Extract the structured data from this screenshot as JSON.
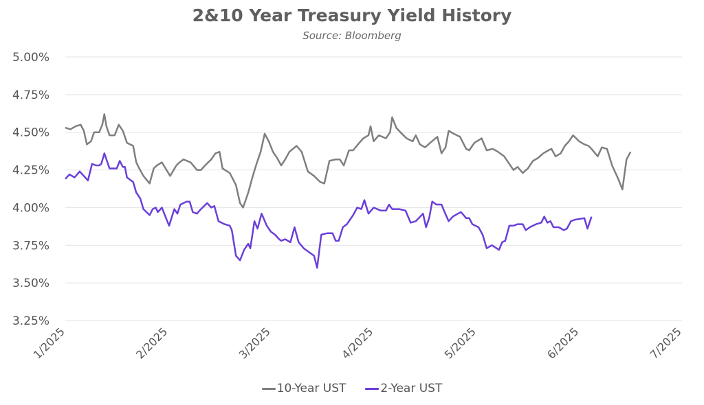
{
  "chart_data": {
    "type": "line",
    "title": "2&10 Year Treasury Yield History",
    "subtitle": "Source: Bloomberg",
    "xlabel": "",
    "ylabel": "",
    "xlim": [
      0,
      6
    ],
    "ylim": [
      3.25,
      5.0
    ],
    "grid": true,
    "legend_position": "bottom",
    "y_ticks": [
      "3.25%",
      "3.50%",
      "3.75%",
      "4.00%",
      "4.25%",
      "4.50%",
      "4.75%",
      "5.00%"
    ],
    "y_tick_values": [
      3.25,
      3.5,
      3.75,
      4.0,
      4.25,
      4.5,
      4.75,
      5.0
    ],
    "x_ticks": [
      "1/2025",
      "2/2025",
      "3/2025",
      "4/2025",
      "5/2025",
      "6/2025",
      "7/2025"
    ],
    "x_tick_values": [
      0,
      1,
      2,
      3,
      4,
      5,
      6
    ],
    "series": [
      {
        "name": "10-Year UST",
        "color": "#7f7f7f",
        "points": [
          [
            0.0,
            4.53
          ],
          [
            0.05,
            4.52
          ],
          [
            0.1,
            4.54
          ],
          [
            0.15,
            4.55
          ],
          [
            0.18,
            4.51
          ],
          [
            0.21,
            4.42
          ],
          [
            0.25,
            4.44
          ],
          [
            0.28,
            4.5
          ],
          [
            0.33,
            4.5
          ],
          [
            0.36,
            4.55
          ],
          [
            0.38,
            4.62
          ],
          [
            0.4,
            4.54
          ],
          [
            0.43,
            4.48
          ],
          [
            0.48,
            4.48
          ],
          [
            0.52,
            4.55
          ],
          [
            0.56,
            4.51
          ],
          [
            0.6,
            4.43
          ],
          [
            0.66,
            4.41
          ],
          [
            0.69,
            4.3
          ],
          [
            0.72,
            4.26
          ],
          [
            0.76,
            4.21
          ],
          [
            0.82,
            4.16
          ],
          [
            0.86,
            4.26
          ],
          [
            0.89,
            4.28
          ],
          [
            0.94,
            4.3
          ],
          [
            1.02,
            4.21
          ],
          [
            1.08,
            4.28
          ],
          [
            1.11,
            4.3
          ],
          [
            1.15,
            4.32
          ],
          [
            1.22,
            4.3
          ],
          [
            1.28,
            4.25
          ],
          [
            1.32,
            4.25
          ],
          [
            1.36,
            4.28
          ],
          [
            1.42,
            4.32
          ],
          [
            1.46,
            4.36
          ],
          [
            1.5,
            4.37
          ],
          [
            1.53,
            4.26
          ],
          [
            1.6,
            4.23
          ],
          [
            1.66,
            4.15
          ],
          [
            1.7,
            4.03
          ],
          [
            1.73,
            4.0
          ],
          [
            1.78,
            4.1
          ],
          [
            1.82,
            4.2
          ],
          [
            1.86,
            4.29
          ],
          [
            1.9,
            4.37
          ],
          [
            1.94,
            4.49
          ],
          [
            1.98,
            4.44
          ],
          [
            2.02,
            4.37
          ],
          [
            2.06,
            4.33
          ],
          [
            2.1,
            4.28
          ],
          [
            2.14,
            4.32
          ],
          [
            2.18,
            4.37
          ],
          [
            2.25,
            4.41
          ],
          [
            2.3,
            4.37
          ],
          [
            2.36,
            4.24
          ],
          [
            2.42,
            4.21
          ],
          [
            2.48,
            4.17
          ],
          [
            2.52,
            4.16
          ],
          [
            2.57,
            4.31
          ],
          [
            2.63,
            4.32
          ],
          [
            2.67,
            4.32
          ],
          [
            2.71,
            4.28
          ],
          [
            2.76,
            4.38
          ],
          [
            2.8,
            4.38
          ],
          [
            2.86,
            4.43
          ],
          [
            2.9,
            4.46
          ],
          [
            2.95,
            4.48
          ],
          [
            2.97,
            4.54
          ],
          [
            3.0,
            4.44
          ],
          [
            3.05,
            4.48
          ],
          [
            3.12,
            4.46
          ],
          [
            3.16,
            4.5
          ],
          [
            3.18,
            4.6
          ],
          [
            3.22,
            4.53
          ],
          [
            3.26,
            4.5
          ],
          [
            3.32,
            4.46
          ],
          [
            3.38,
            4.44
          ],
          [
            3.41,
            4.48
          ],
          [
            3.45,
            4.42
          ],
          [
            3.5,
            4.4
          ],
          [
            3.55,
            4.43
          ],
          [
            3.62,
            4.47
          ],
          [
            3.66,
            4.36
          ],
          [
            3.7,
            4.4
          ],
          [
            3.73,
            4.51
          ],
          [
            3.78,
            4.49
          ],
          [
            3.84,
            4.47
          ],
          [
            3.9,
            4.39
          ],
          [
            3.93,
            4.38
          ],
          [
            3.98,
            4.43
          ],
          [
            4.05,
            4.46
          ],
          [
            4.1,
            4.38
          ],
          [
            4.16,
            4.39
          ],
          [
            4.21,
            4.37
          ],
          [
            4.27,
            4.34
          ],
          [
            4.31,
            4.3
          ],
          [
            4.36,
            4.25
          ],
          [
            4.4,
            4.27
          ],
          [
            4.45,
            4.23
          ],
          [
            4.5,
            4.26
          ],
          [
            4.55,
            4.31
          ],
          [
            4.6,
            4.33
          ],
          [
            4.65,
            4.36
          ],
          [
            4.7,
            4.38
          ],
          [
            4.73,
            4.39
          ],
          [
            4.77,
            4.34
          ],
          [
            4.82,
            4.36
          ],
          [
            4.86,
            4.41
          ],
          [
            4.9,
            4.44
          ],
          [
            4.94,
            4.48
          ],
          [
            4.97,
            4.46
          ],
          [
            5.0,
            4.44
          ],
          [
            5.05,
            4.42
          ],
          [
            5.09,
            4.41
          ],
          [
            5.12,
            4.39
          ],
          [
            5.18,
            4.34
          ],
          [
            5.22,
            4.4
          ],
          [
            5.27,
            4.39
          ],
          [
            5.32,
            4.28
          ],
          [
            5.38,
            4.19
          ],
          [
            5.42,
            4.12
          ],
          [
            5.46,
            4.32
          ],
          [
            5.5,
            4.37
          ]
        ]
      },
      {
        "name": "2-Year UST",
        "color": "#6a3fd8",
        "points": [
          [
            0.0,
            4.19
          ],
          [
            0.04,
            4.22
          ],
          [
            0.09,
            4.2
          ],
          [
            0.14,
            4.24
          ],
          [
            0.18,
            4.21
          ],
          [
            0.22,
            4.18
          ],
          [
            0.26,
            4.29
          ],
          [
            0.3,
            4.28
          ],
          [
            0.33,
            4.28
          ],
          [
            0.35,
            4.29
          ],
          [
            0.38,
            4.36
          ],
          [
            0.43,
            4.26
          ],
          [
            0.48,
            4.26
          ],
          [
            0.5,
            4.26
          ],
          [
            0.53,
            4.31
          ],
          [
            0.56,
            4.27
          ],
          [
            0.58,
            4.27
          ],
          [
            0.6,
            4.2
          ],
          [
            0.66,
            4.17
          ],
          [
            0.69,
            4.1
          ],
          [
            0.73,
            4.06
          ],
          [
            0.76,
            3.99
          ],
          [
            0.82,
            3.95
          ],
          [
            0.85,
            3.99
          ],
          [
            0.88,
            4.0
          ],
          [
            0.9,
            3.97
          ],
          [
            0.94,
            4.0
          ],
          [
            0.98,
            3.93
          ],
          [
            1.01,
            3.88
          ],
          [
            1.06,
            3.99
          ],
          [
            1.09,
            3.96
          ],
          [
            1.12,
            4.02
          ],
          [
            1.18,
            4.04
          ],
          [
            1.21,
            4.04
          ],
          [
            1.24,
            3.97
          ],
          [
            1.28,
            3.96
          ],
          [
            1.32,
            3.99
          ],
          [
            1.38,
            4.03
          ],
          [
            1.42,
            4.0
          ],
          [
            1.45,
            4.01
          ],
          [
            1.49,
            3.91
          ],
          [
            1.55,
            3.89
          ],
          [
            1.6,
            3.88
          ],
          [
            1.62,
            3.85
          ],
          [
            1.66,
            3.68
          ],
          [
            1.7,
            3.65
          ],
          [
            1.74,
            3.72
          ],
          [
            1.78,
            3.76
          ],
          [
            1.8,
            3.73
          ],
          [
            1.84,
            3.91
          ],
          [
            1.87,
            3.86
          ],
          [
            1.91,
            3.96
          ],
          [
            1.96,
            3.88
          ],
          [
            2.0,
            3.84
          ],
          [
            2.04,
            3.82
          ],
          [
            2.08,
            3.79
          ],
          [
            2.1,
            3.78
          ],
          [
            2.14,
            3.79
          ],
          [
            2.19,
            3.77
          ],
          [
            2.23,
            3.87
          ],
          [
            2.27,
            3.77
          ],
          [
            2.32,
            3.73
          ],
          [
            2.36,
            3.71
          ],
          [
            2.42,
            3.68
          ],
          [
            2.45,
            3.6
          ],
          [
            2.49,
            3.82
          ],
          [
            2.55,
            3.83
          ],
          [
            2.6,
            3.83
          ],
          [
            2.63,
            3.78
          ],
          [
            2.66,
            3.78
          ],
          [
            2.7,
            3.87
          ],
          [
            2.74,
            3.89
          ],
          [
            2.8,
            3.95
          ],
          [
            2.84,
            4.0
          ],
          [
            2.88,
            3.99
          ],
          [
            2.91,
            4.05
          ],
          [
            2.95,
            3.96
          ],
          [
            3.0,
            4.0
          ],
          [
            3.07,
            3.98
          ],
          [
            3.12,
            3.98
          ],
          [
            3.15,
            4.02
          ],
          [
            3.18,
            3.99
          ],
          [
            3.25,
            3.99
          ],
          [
            3.31,
            3.98
          ],
          [
            3.36,
            3.9
          ],
          [
            3.41,
            3.91
          ],
          [
            3.48,
            3.96
          ],
          [
            3.51,
            3.87
          ],
          [
            3.54,
            3.93
          ],
          [
            3.57,
            4.04
          ],
          [
            3.61,
            4.02
          ],
          [
            3.66,
            4.02
          ],
          [
            3.69,
            3.97
          ],
          [
            3.73,
            3.91
          ],
          [
            3.77,
            3.94
          ],
          [
            3.82,
            3.96
          ],
          [
            3.85,
            3.97
          ],
          [
            3.9,
            3.93
          ],
          [
            3.93,
            3.93
          ],
          [
            3.96,
            3.89
          ],
          [
            4.02,
            3.87
          ],
          [
            4.06,
            3.82
          ],
          [
            4.1,
            3.73
          ],
          [
            4.15,
            3.75
          ],
          [
            4.22,
            3.72
          ],
          [
            4.25,
            3.77
          ],
          [
            4.28,
            3.78
          ],
          [
            4.32,
            3.88
          ],
          [
            4.36,
            3.88
          ],
          [
            4.4,
            3.89
          ],
          [
            4.45,
            3.89
          ],
          [
            4.48,
            3.85
          ],
          [
            4.52,
            3.87
          ],
          [
            4.58,
            3.89
          ],
          [
            4.63,
            3.9
          ],
          [
            4.66,
            3.94
          ],
          [
            4.69,
            3.9
          ],
          [
            4.72,
            3.91
          ],
          [
            4.75,
            3.87
          ],
          [
            4.8,
            3.87
          ],
          [
            4.85,
            3.85
          ],
          [
            4.88,
            3.86
          ],
          [
            4.92,
            3.91
          ],
          [
            4.96,
            3.92
          ],
          [
            5.05,
            3.93
          ],
          [
            5.08,
            3.86
          ],
          [
            5.12,
            3.94
          ]
        ]
      }
    ]
  }
}
